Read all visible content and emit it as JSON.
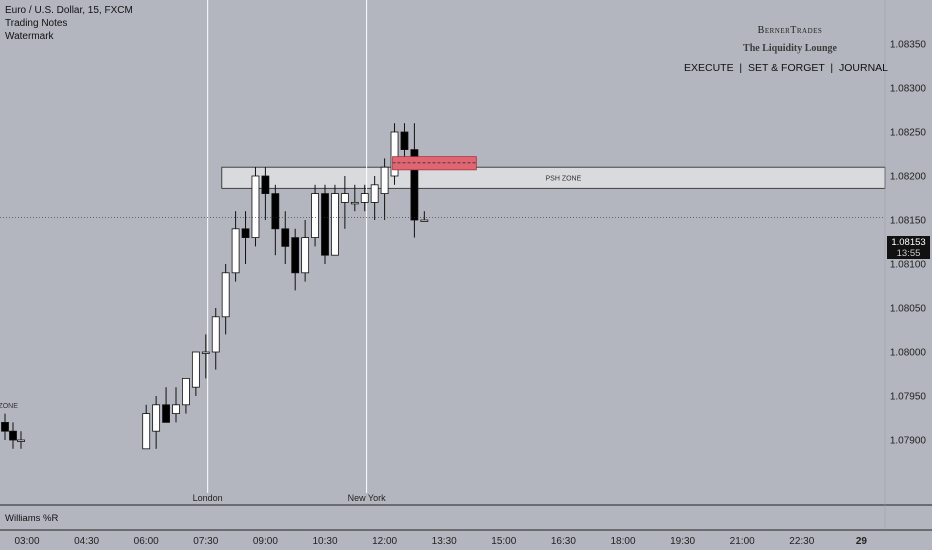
{
  "header": {
    "symbol": "Euro / U.S. Dollar, 15, FXCM",
    "line2": "Trading Notes",
    "line3": "Watermark"
  },
  "watermark": {
    "brand": "BernerTrades",
    "tagline": "The Liquidity Lounge",
    "motto": "EXECUTE  |  SET & FORGET  |  JOURNAL"
  },
  "indicator": {
    "label": "Williams %R"
  },
  "last_price": {
    "value": "1.08153",
    "countdown": "13:55"
  },
  "colors": {
    "background": "#b3b6bf",
    "bull": "#ffffff",
    "bear": "#000000",
    "zone": "#d9dade",
    "fvg": "#e06672"
  },
  "chart_data": {
    "type": "candlestick",
    "timeframe": "15",
    "y_ticks": [
      1.0835,
      1.083,
      1.0825,
      1.082,
      1.0815,
      1.081,
      1.0805,
      1.08,
      1.0795,
      1.079
    ],
    "x_ticks": [
      "03:00",
      "04:30",
      "06:00",
      "07:30",
      "09:00",
      "10:30",
      "12:00",
      "13:30",
      "15:00",
      "16:30",
      "18:00",
      "19:30",
      "21:00",
      "22:30",
      "29"
    ],
    "ylim": [
      1.0789,
      1.0838
    ],
    "zones": [
      {
        "label": "PSH ZONE",
        "start": "07:30",
        "low": 1.08186,
        "high": 1.0821
      },
      {
        "label": "PSH ZONE",
        "start": "before-03:00",
        "low": 1.07925,
        "high": 1.07953
      }
    ],
    "fvg": {
      "start": "12:15",
      "end": "13:00",
      "low": 1.08207,
      "high": 1.08222,
      "mid": 1.08215
    },
    "sessions": [
      {
        "label": "London",
        "time": "08:00"
      },
      {
        "label": "New York",
        "time": "12:00"
      }
    ],
    "candles": [
      {
        "t": "02:45",
        "o": 1.0792,
        "h": 1.0793,
        "l": 1.079,
        "c": 1.0791
      },
      {
        "t": "03:00",
        "o": 1.0791,
        "h": 1.0792,
        "l": 1.0789,
        "c": 1.079
      },
      {
        "t": "03:15",
        "o": 1.079,
        "h": 1.0791,
        "l": 1.0789,
        "c": 1.079
      },
      {
        "t": "06:00",
        "o": 1.0789,
        "h": 1.0794,
        "l": 1.0789,
        "c": 1.0793
      },
      {
        "t": "06:15",
        "o": 1.0791,
        "h": 1.0795,
        "l": 1.0789,
        "c": 1.0794
      },
      {
        "t": "06:30",
        "o": 1.0794,
        "h": 1.0796,
        "l": 1.0792,
        "c": 1.0792
      },
      {
        "t": "06:45",
        "o": 1.0793,
        "h": 1.0796,
        "l": 1.0792,
        "c": 1.0794
      },
      {
        "t": "07:00",
        "o": 1.0794,
        "h": 1.0797,
        "l": 1.0793,
        "c": 1.0797
      },
      {
        "t": "07:15",
        "o": 1.0796,
        "h": 1.08,
        "l": 1.0795,
        "c": 1.08
      },
      {
        "t": "07:30",
        "o": 1.08,
        "h": 1.0802,
        "l": 1.0797,
        "c": 1.08
      },
      {
        "t": "07:45",
        "o": 1.08,
        "h": 1.0805,
        "l": 1.0798,
        "c": 1.0804
      },
      {
        "t": "08:00",
        "o": 1.0804,
        "h": 1.081,
        "l": 1.0802,
        "c": 1.0809
      },
      {
        "t": "08:15",
        "o": 1.0809,
        "h": 1.0816,
        "l": 1.0808,
        "c": 1.0814
      },
      {
        "t": "08:30",
        "o": 1.0814,
        "h": 1.0816,
        "l": 1.081,
        "c": 1.0813
      },
      {
        "t": "08:45",
        "o": 1.0813,
        "h": 1.0821,
        "l": 1.0812,
        "c": 1.082
      },
      {
        "t": "09:00",
        "o": 1.082,
        "h": 1.0821,
        "l": 1.0815,
        "c": 1.0818
      },
      {
        "t": "09:15",
        "o": 1.0818,
        "h": 1.0819,
        "l": 1.0811,
        "c": 1.0814
      },
      {
        "t": "09:30",
        "o": 1.0814,
        "h": 1.0816,
        "l": 1.081,
        "c": 1.0812
      },
      {
        "t": "09:45",
        "o": 1.0813,
        "h": 1.0814,
        "l": 1.0807,
        "c": 1.0809
      },
      {
        "t": "10:00",
        "o": 1.0809,
        "h": 1.0815,
        "l": 1.0808,
        "c": 1.0813
      },
      {
        "t": "10:15",
        "o": 1.0813,
        "h": 1.0819,
        "l": 1.0812,
        "c": 1.0818
      },
      {
        "t": "10:30",
        "o": 1.0818,
        "h": 1.0819,
        "l": 1.081,
        "c": 1.0811
      },
      {
        "t": "10:45",
        "o": 1.0811,
        "h": 1.0819,
        "l": 1.0811,
        "c": 1.0818
      },
      {
        "t": "11:00",
        "o": 1.0817,
        "h": 1.082,
        "l": 1.0814,
        "c": 1.0818
      },
      {
        "t": "11:15",
        "o": 1.0817,
        "h": 1.0819,
        "l": 1.0816,
        "c": 1.0817
      },
      {
        "t": "11:30",
        "o": 1.0817,
        "h": 1.0819,
        "l": 1.0816,
        "c": 1.0818
      },
      {
        "t": "11:45",
        "o": 1.0817,
        "h": 1.082,
        "l": 1.0815,
        "c": 1.0819
      },
      {
        "t": "12:00",
        "o": 1.0818,
        "h": 1.0822,
        "l": 1.0815,
        "c": 1.0821
      },
      {
        "t": "12:15",
        "o": 1.082,
        "h": 1.0826,
        "l": 1.0819,
        "c": 1.0825
      },
      {
        "t": "12:30",
        "o": 1.0825,
        "h": 1.0826,
        "l": 1.0822,
        "c": 1.0823
      },
      {
        "t": "12:45",
        "o": 1.0823,
        "h": 1.0826,
        "l": 1.0813,
        "c": 1.0815
      },
      {
        "t": "13:00",
        "o": 1.0815,
        "h": 1.0816,
        "l": 1.0815,
        "c": 1.0815
      }
    ]
  }
}
